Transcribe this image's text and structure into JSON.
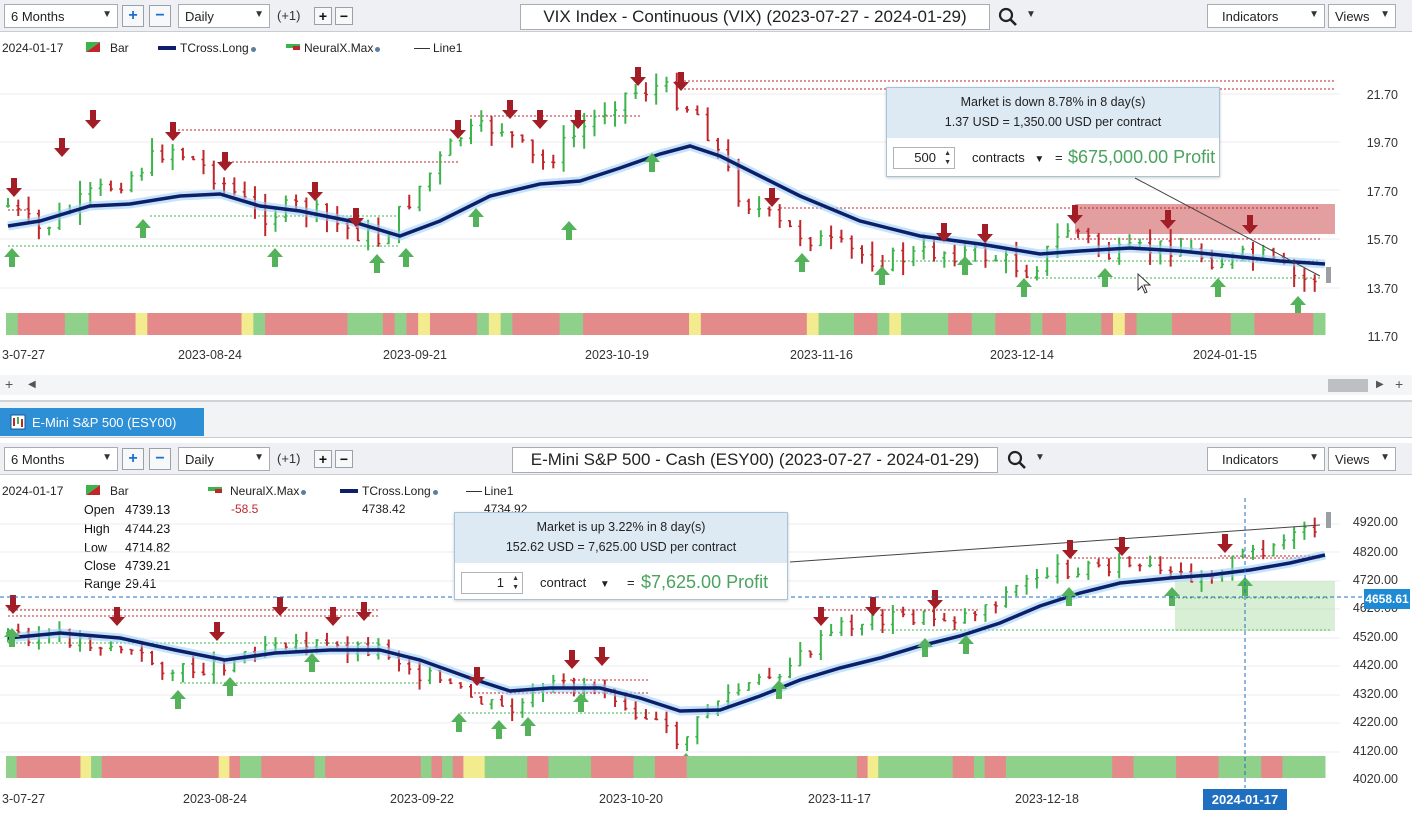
{
  "top": {
    "toolbar": {
      "period": "6 Months",
      "interval": "Daily",
      "offset": "(+1)",
      "chart_title": "VIX Index - Continuous (VIX) (2023-07-27 - 2024-01-29)",
      "indicators": "Indicators",
      "views": "Views"
    },
    "legend": {
      "date": "2024-01-17",
      "bar": "Bar",
      "tcross": "TCross.Long",
      "neuralx": "NeuralX.Max",
      "line1": "Line1"
    },
    "popup": {
      "line1": "Market is down 8.78% in 8 day(s)",
      "line2": "1.37 USD = 1,350.00 USD per contract",
      "qty": "500",
      "unit": "contracts",
      "eq": "=",
      "profit": "$675,000.00 Profit"
    },
    "y_ticks": [
      "21.70",
      "19.70",
      "17.70",
      "15.70",
      "13.70",
      "11.70"
    ],
    "x_ticks": [
      "3-07-27",
      "2023-08-24",
      "2023-09-21",
      "2023-10-19",
      "2023-11-16",
      "2023-12-14",
      "2024-01-15"
    ]
  },
  "bottom": {
    "tab_label": "E-Mini S&P 500 (ESY00)",
    "toolbar": {
      "period": "6 Months",
      "interval": "Daily",
      "offset": "(+1)",
      "chart_title": "E-Mini S&P 500 - Cash (ESY00) (2023-07-27 - 2024-01-29)",
      "indicators": "Indicators",
      "views": "Views"
    },
    "legend": {
      "date": "2024-01-17",
      "bar": "Bar",
      "neuralx": "NeuralX.Max",
      "neuralx_val": "-58.5",
      "tcross": "TCross.Long",
      "tcross_val": "4738.42",
      "line1": "Line1",
      "line1_val": "4734.92"
    },
    "ohlc": {
      "open_label": "Open",
      "open": "4739.13",
      "high_label": "High",
      "high": "4744.23",
      "low_label": "Low",
      "low": "4714.82",
      "close_label": "Close",
      "close": "4739.21",
      "range_label": "Range",
      "range": "29.41"
    },
    "popup": {
      "line1": "Market is up 3.22% in 8 day(s)",
      "line2": "152.62 USD = 7,625.00 USD per contract",
      "qty": "1",
      "unit": "contract",
      "eq": "=",
      "profit": "$7,625.00 Profit"
    },
    "price_tag": "4658.61",
    "y_ticks": [
      "4920.00",
      "4820.00",
      "4720.00",
      "4620.00",
      "4520.00",
      "4420.00",
      "4320.00",
      "4220.00",
      "4120.00",
      "4020.00"
    ],
    "x_ticks": [
      "3-07-27",
      "2023-08-24",
      "2023-09-22",
      "2023-10-20",
      "2023-11-17",
      "2023-12-18"
    ],
    "x_highlight": "2024-01-17"
  },
  "colors": {
    "up": "#3cb44b",
    "down": "#c0272d",
    "tcross": "#0d1f6b",
    "popup_profit": "#4aa35e",
    "tab": "#2d8fd6",
    "strip_green": "#8fd18a",
    "strip_red": "#e58a8a",
    "strip_yellow": "#f2ec8e"
  }
}
